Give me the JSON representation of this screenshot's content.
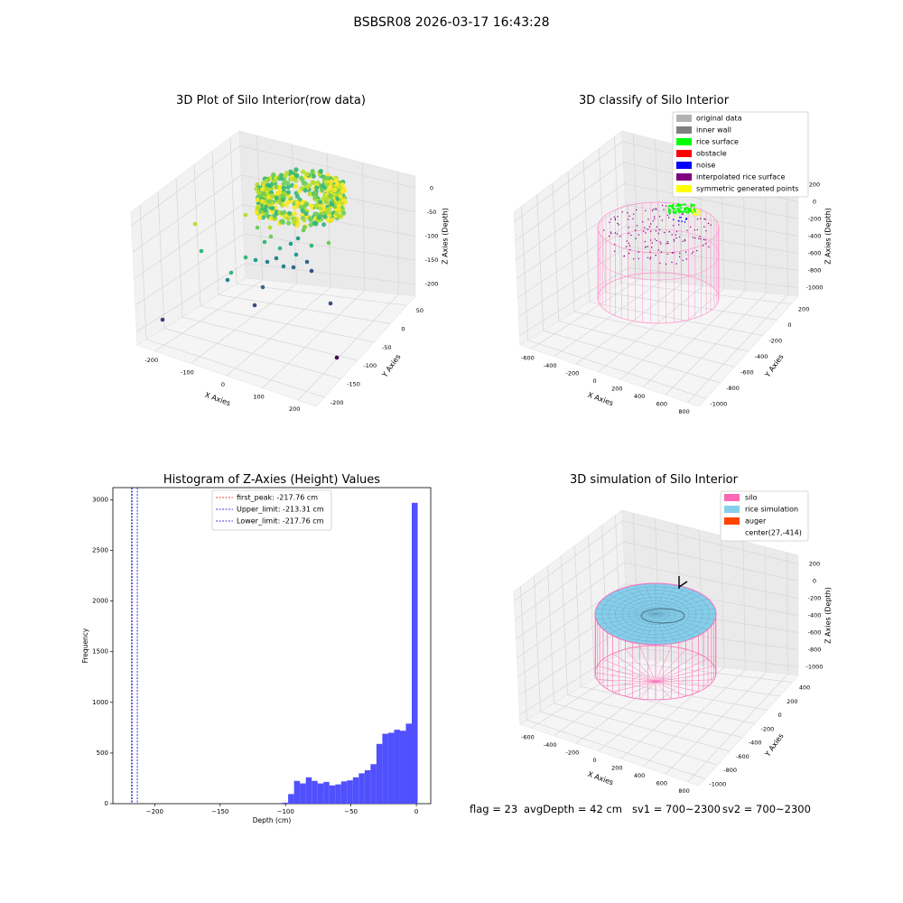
{
  "figure": {
    "suptitle": "BSBSR08 2026-03-17 16:43:28"
  },
  "chart_data": [
    {
      "type": "scatter",
      "subtype": "3d-scatter",
      "title": "3D Plot of Silo Interior(row data)",
      "xlabel": "X Axies",
      "ylabel": "Y Axies",
      "zlabel": "Z Axies (Depth)",
      "x_ticks": [
        "-200",
        "-100",
        "0",
        "100",
        "200"
      ],
      "y_ticks": [
        "50",
        "0",
        "-50",
        "-100",
        "-150",
        "-200"
      ],
      "z_ticks": [
        "0",
        "-50",
        "-100",
        "-150",
        "-200"
      ],
      "colormap": "viridis"
    },
    {
      "type": "scatter",
      "subtype": "3d-classification",
      "title": "3D classify of Silo Interior",
      "xlabel": "X Axies",
      "ylabel": "Y Axies",
      "zlabel": "Z Axies (Depth)",
      "x_ticks": [
        "-600",
        "-400",
        "-200",
        "0",
        "200",
        "400",
        "600",
        "800"
      ],
      "y_ticks": [
        "200",
        "0",
        "-200",
        "-400",
        "-600",
        "-800",
        "-1000"
      ],
      "z_ticks": [
        "200",
        "0",
        "-200",
        "-400",
        "-600",
        "-800",
        "-1000"
      ],
      "legend_position": "top-right",
      "legend": [
        {
          "label": "original data",
          "color": "#b3b3b3"
        },
        {
          "label": "inner wall",
          "color": "#808080"
        },
        {
          "label": "rice surface",
          "color": "#00ff00"
        },
        {
          "label": "obstacle",
          "color": "#ff0000"
        },
        {
          "label": "noise",
          "color": "#0000ff"
        },
        {
          "label": "interpolated rice surface",
          "color": "#800080"
        },
        {
          "label": "symmetric generated points",
          "color": "#ffff00"
        }
      ]
    },
    {
      "type": "bar",
      "subtype": "histogram",
      "title": "Histogram of Z-Axies (Height) Values",
      "xlabel": "Depth (cm)",
      "ylabel": "Frequency",
      "xlim": [
        -232,
        11
      ],
      "ylim": [
        0,
        3120
      ],
      "x_ticks": [
        -200,
        -150,
        -100,
        -50,
        0
      ],
      "y_ticks": [
        0,
        500,
        1000,
        1500,
        2000,
        2500,
        3000
      ],
      "bar_color": "#4d4dff",
      "bin_width": 4.5,
      "bins_start": [
        -102.5,
        -98.0,
        -93.5,
        -89.0,
        -84.5,
        -80.0,
        -75.5,
        -71.0,
        -66.5,
        -62.0,
        -57.5,
        -53.0,
        -48.5,
        -44.0,
        -39.5,
        -35.0,
        -30.5,
        -26.0,
        -21.5,
        -17.0,
        -12.5,
        -8.0,
        -3.5
      ],
      "values": [
        10,
        95,
        225,
        200,
        260,
        225,
        200,
        215,
        180,
        190,
        220,
        230,
        260,
        300,
        330,
        390,
        590,
        690,
        700,
        730,
        720,
        790,
        2970
      ],
      "vlines": [
        {
          "x": -217.76,
          "label": "first_peak: -217.76 cm",
          "color": "#ff0000"
        },
        {
          "x": -213.31,
          "label": "Upper_limit: -213.31 cm",
          "color": "#0000cc"
        },
        {
          "x": -217.76,
          "label": "Lower_limit: -217.76 cm",
          "color": "#0000cc"
        }
      ],
      "legend_position": "top-center"
    },
    {
      "type": "scatter",
      "subtype": "3d-simulation",
      "title": "3D simulation of Silo Interior",
      "xlabel": "X Axies",
      "ylabel": "Y Axies",
      "zlabel": "Z Axies (Depth)",
      "x_ticks": [
        "-600",
        "-400",
        "-200",
        "0",
        "200",
        "400",
        "600",
        "800"
      ],
      "y_ticks": [
        "400",
        "200",
        "0",
        "-200",
        "-400",
        "-600",
        "-800",
        "-1000"
      ],
      "z_ticks": [
        "200",
        "0",
        "-200",
        "-400",
        "-600",
        "-800",
        "-1000"
      ],
      "legend_position": "top-right",
      "legend": [
        {
          "label": "silo",
          "color": "#ff69b4"
        },
        {
          "label": "rice simulation",
          "color": "#87ceeb"
        },
        {
          "label": "auger",
          "color": "#ff4500"
        },
        {
          "label": "center(27,-414)",
          "color": "none"
        }
      ]
    }
  ],
  "footer": {
    "flag": "flag = 23",
    "avg_depth": "avgDepth = 42 cm",
    "sv1": "sv1 = 700~2300",
    "sv2": "sv2 = 700~2300"
  }
}
